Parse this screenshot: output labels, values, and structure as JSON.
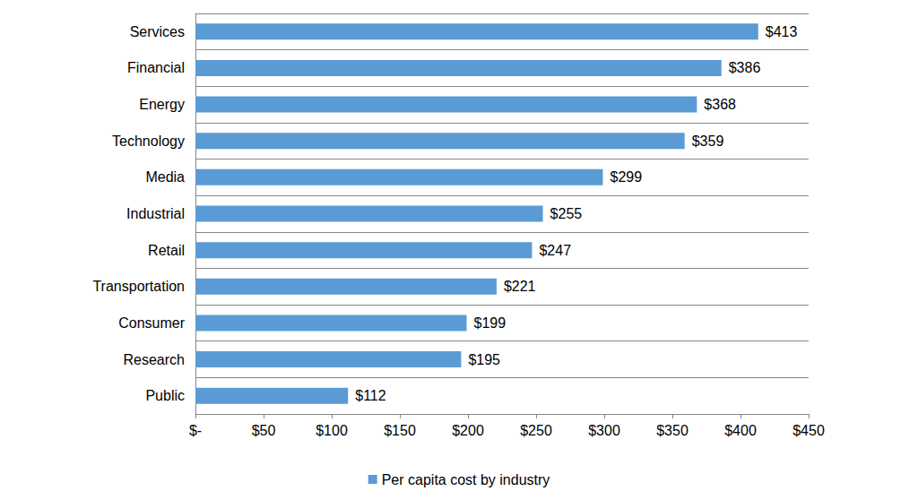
{
  "chart_data": {
    "type": "bar",
    "orientation": "horizontal",
    "categories": [
      "Services",
      "Financial",
      "Energy",
      "Technology",
      "Media",
      "Industrial",
      "Retail",
      "Transportation",
      "Consumer",
      "Research",
      "Public"
    ],
    "series": [
      {
        "name": "Per capita cost by industry",
        "color": "#5b9bd5",
        "values": [
          413,
          386,
          368,
          359,
          299,
          255,
          247,
          221,
          199,
          195,
          112
        ],
        "value_labels": [
          "$413",
          "$386",
          "$368",
          "$359",
          "$299",
          "$255",
          "$247",
          "$221",
          "$199",
          "$195",
          "$112"
        ]
      }
    ],
    "xlim": [
      0,
      450
    ],
    "xticks": [
      {
        "value": 0,
        "label": "$-"
      },
      {
        "value": 50,
        "label": "$50"
      },
      {
        "value": 100,
        "label": "$100"
      },
      {
        "value": 150,
        "label": "$150"
      },
      {
        "value": 200,
        "label": "$200"
      },
      {
        "value": 250,
        "label": "$250"
      },
      {
        "value": 300,
        "label": "$300"
      },
      {
        "value": 350,
        "label": "$350"
      },
      {
        "value": 400,
        "label": "$400"
      },
      {
        "value": 450,
        "label": "$450"
      }
    ],
    "grid": true,
    "data_labels": true,
    "legend": "bottom"
  }
}
